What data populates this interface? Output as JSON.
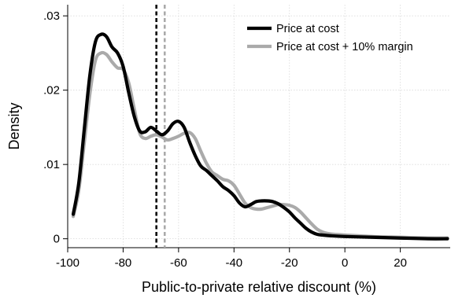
{
  "chart_data": {
    "type": "line",
    "title": "",
    "xlabel": "Public-to-private relative discount (%)",
    "ylabel": "Density",
    "xlim": [
      -100,
      38
    ],
    "ylim": [
      -0.0012,
      0.0315
    ],
    "x_ticks": [
      -100,
      -80,
      -60,
      -40,
      -20,
      0,
      20
    ],
    "x_tick_labels": [
      "-100",
      "-80",
      "-60",
      "-40",
      "-20",
      "0",
      "20"
    ],
    "y_ticks": [
      0,
      0.01,
      0.02,
      0.03
    ],
    "y_tick_labels": [
      "0",
      ".01",
      ".02",
      ".03"
    ],
    "grid": true,
    "legend_position": "top-right",
    "series": [
      {
        "name": "Price at cost",
        "color": "#000000",
        "points": [
          [
            -98,
            0.0033
          ],
          [
            -96,
            0.0075
          ],
          [
            -94,
            0.0148
          ],
          [
            -92,
            0.022
          ],
          [
            -90,
            0.0265
          ],
          [
            -88,
            0.0275
          ],
          [
            -86,
            0.0272
          ],
          [
            -84,
            0.0258
          ],
          [
            -82,
            0.025
          ],
          [
            -80,
            0.0232
          ],
          [
            -78,
            0.0197
          ],
          [
            -76,
            0.0165
          ],
          [
            -74,
            0.0145
          ],
          [
            -72,
            0.0144
          ],
          [
            -70,
            0.015
          ],
          [
            -68,
            0.0145
          ],
          [
            -66,
            0.014
          ],
          [
            -64,
            0.0145
          ],
          [
            -62,
            0.0155
          ],
          [
            -60,
            0.0158
          ],
          [
            -58,
            0.015
          ],
          [
            -56,
            0.013
          ],
          [
            -54,
            0.0112
          ],
          [
            -52,
            0.0098
          ],
          [
            -50,
            0.0092
          ],
          [
            -48,
            0.0085
          ],
          [
            -46,
            0.0078
          ],
          [
            -44,
            0.007
          ],
          [
            -42,
            0.0065
          ],
          [
            -40,
            0.0058
          ],
          [
            -38,
            0.0048
          ],
          [
            -36,
            0.0043
          ],
          [
            -34,
            0.0046
          ],
          [
            -32,
            0.005
          ],
          [
            -30,
            0.0051
          ],
          [
            -28,
            0.0051
          ],
          [
            -26,
            0.005
          ],
          [
            -24,
            0.0047
          ],
          [
            -22,
            0.0042
          ],
          [
            -20,
            0.0036
          ],
          [
            -18,
            0.0028
          ],
          [
            -16,
            0.0021
          ],
          [
            -14,
            0.0014
          ],
          [
            -12,
            0.0009
          ],
          [
            -10,
            0.0006
          ],
          [
            -8,
            0.0005
          ],
          [
            -5,
            0.0004
          ],
          [
            0,
            0.0003
          ],
          [
            10,
            0.0002
          ],
          [
            20,
            0.0001
          ],
          [
            30,
            0.0
          ],
          [
            37,
            0.0
          ]
        ]
      },
      {
        "name": "Price at cost + 10% margin",
        "color": "#aaaaaa",
        "points": [
          [
            -98,
            0.003
          ],
          [
            -96,
            0.0065
          ],
          [
            -94,
            0.013
          ],
          [
            -92,
            0.0195
          ],
          [
            -90,
            0.024
          ],
          [
            -88,
            0.025
          ],
          [
            -86,
            0.0248
          ],
          [
            -84,
            0.0238
          ],
          [
            -82,
            0.023
          ],
          [
            -80,
            0.0228
          ],
          [
            -78,
            0.021
          ],
          [
            -76,
            0.0175
          ],
          [
            -74,
            0.0142
          ],
          [
            -72,
            0.0135
          ],
          [
            -70,
            0.0138
          ],
          [
            -68,
            0.014
          ],
          [
            -66,
            0.0137
          ],
          [
            -64,
            0.0133
          ],
          [
            -62,
            0.0135
          ],
          [
            -60,
            0.0138
          ],
          [
            -58,
            0.0142
          ],
          [
            -56,
            0.0143
          ],
          [
            -54,
            0.0135
          ],
          [
            -52,
            0.0118
          ],
          [
            -50,
            0.0102
          ],
          [
            -48,
            0.009
          ],
          [
            -46,
            0.0085
          ],
          [
            -44,
            0.008
          ],
          [
            -42,
            0.0078
          ],
          [
            -40,
            0.0072
          ],
          [
            -38,
            0.006
          ],
          [
            -36,
            0.0048
          ],
          [
            -34,
            0.0042
          ],
          [
            -32,
            0.004
          ],
          [
            -30,
            0.004
          ],
          [
            -28,
            0.0042
          ],
          [
            -26,
            0.0044
          ],
          [
            -24,
            0.0046
          ],
          [
            -22,
            0.0046
          ],
          [
            -20,
            0.0045
          ],
          [
            -18,
            0.0042
          ],
          [
            -16,
            0.0036
          ],
          [
            -14,
            0.0028
          ],
          [
            -12,
            0.002
          ],
          [
            -10,
            0.0013
          ],
          [
            -8,
            0.0009
          ],
          [
            -6,
            0.0007
          ],
          [
            -4,
            0.0006
          ],
          [
            0,
            0.0005
          ],
          [
            10,
            0.0003
          ],
          [
            20,
            0.0002
          ],
          [
            30,
            0.0001
          ],
          [
            37,
            0.0001
          ]
        ]
      }
    ],
    "reference_lines": [
      {
        "x": -68,
        "color": "#000000",
        "style": "dashed"
      },
      {
        "x": -65,
        "color": "#aaaaaa",
        "style": "dashed"
      }
    ]
  }
}
